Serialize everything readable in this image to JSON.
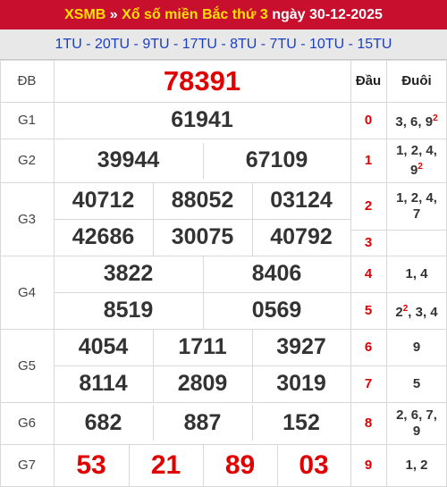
{
  "header": {
    "prefix": "XSMB",
    "sep": "»",
    "title": "Xổ số miền Bắc thứ 3",
    "date_text": "ngày 30-12-2025"
  },
  "codes_line": "1TU - 20TU - 9TU - 17TU - 8TU - 7TU - 10TU - 15TU",
  "prizes": {
    "db": {
      "label": "ĐB",
      "numbers": [
        "78391"
      ]
    },
    "g1": {
      "label": "G1",
      "numbers": [
        "61941"
      ]
    },
    "g2": {
      "label": "G2",
      "numbers": [
        "39944",
        "67109"
      ]
    },
    "g3": {
      "label": "G3",
      "numbers": [
        "40712",
        "88052",
        "03124",
        "42686",
        "30075",
        "40792"
      ]
    },
    "g4": {
      "label": "G4",
      "numbers": [
        "3822",
        "8406",
        "8519",
        "0569"
      ]
    },
    "g5": {
      "label": "G5",
      "numbers": [
        "4054",
        "1711",
        "3927",
        "8114",
        "2809",
        "3019"
      ]
    },
    "g6": {
      "label": "G6",
      "numbers": [
        "682",
        "887",
        "152"
      ]
    },
    "g7": {
      "label": "G7",
      "numbers": [
        "53",
        "21",
        "89",
        "03"
      ]
    }
  },
  "loto": {
    "head_label": "Đầu",
    "tail_label": "Đuôi",
    "rows": [
      {
        "dau": "0",
        "duoi": "3, 6, 9",
        "sup": "2"
      },
      {
        "dau": "1",
        "duoi": "1, 2, 4, 9",
        "sup": "2"
      },
      {
        "dau": "2",
        "duoi": "1, 2, 4, 7",
        "sup": ""
      },
      {
        "dau": "3",
        "duoi": "",
        "sup": ""
      },
      {
        "dau": "4",
        "duoi": "1, 4",
        "sup": ""
      },
      {
        "dau": "5",
        "duoi": "2",
        "sup": "2",
        "duoi_rest": ", 3, 4"
      },
      {
        "dau": "6",
        "duoi": "9",
        "sup": ""
      },
      {
        "dau": "7",
        "duoi": "5",
        "sup": ""
      },
      {
        "dau": "8",
        "duoi": "2, 6, 7, 9",
        "sup": ""
      },
      {
        "dau": "9",
        "duoi": "1, 2",
        "sup": ""
      }
    ]
  },
  "colors": {
    "header_bg": "#c8102e",
    "header_accent": "#ffe100",
    "codes_color": "#1a3fc4",
    "number_red": "#e00000"
  }
}
